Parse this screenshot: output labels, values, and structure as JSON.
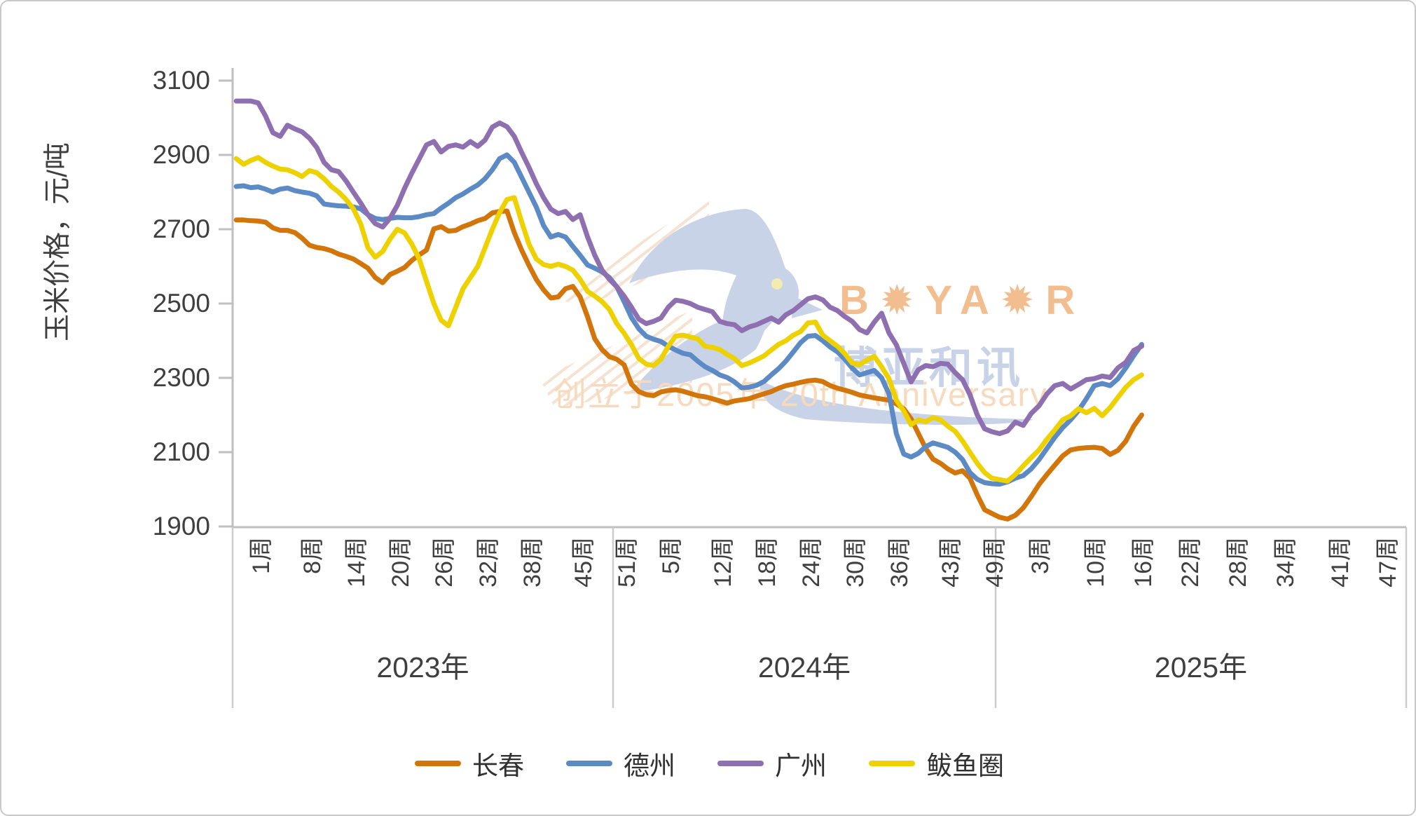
{
  "chart_data": {
    "type": "line",
    "title": "",
    "y_axis": {
      "title": "玉米价格，元/吨",
      "ticks": [
        3100,
        2900,
        2700,
        2500,
        2300,
        2100,
        1900
      ],
      "min": 1900,
      "max": 3100
    },
    "x_axis": {
      "groups": [
        {
          "year_label": "2023年",
          "weeks_total": 52,
          "week_tick_numbers": [
            1,
            8,
            14,
            20,
            26,
            32,
            38,
            45,
            51
          ],
          "week_tick_labels": [
            "1周",
            "8周",
            "14周",
            "20周",
            "26周",
            "32周",
            "38周",
            "45周",
            "51周"
          ]
        },
        {
          "year_label": "2024年",
          "weeks_total": 52,
          "week_tick_numbers": [
            5,
            12,
            18,
            24,
            30,
            36,
            43,
            49
          ],
          "week_tick_labels": [
            "5周",
            "12周",
            "18周",
            "24周",
            "30周",
            "36周",
            "43周",
            "49周"
          ]
        },
        {
          "year_label": "2025年",
          "weeks_total": 52,
          "week_tick_numbers": [
            3,
            10,
            16,
            22,
            28,
            34,
            41,
            47
          ],
          "week_tick_labels": [
            "3周",
            "10周",
            "16周",
            "22周",
            "28周",
            "34周",
            "41周",
            "47周"
          ]
        }
      ]
    },
    "legend_position": "bottom",
    "grid": "off",
    "series": [
      {
        "name": "长春",
        "color": "#d2760c",
        "values_2023": [
          2725,
          2725,
          2723,
          2722,
          2719,
          2704,
          2697,
          2697,
          2691,
          2676,
          2657,
          2651,
          2648,
          2642,
          2633,
          2627,
          2620,
          2608,
          2595,
          2570,
          2556,
          2578,
          2587,
          2597,
          2616,
          2631,
          2644,
          2701,
          2707,
          2695,
          2697,
          2707,
          2714,
          2723,
          2729,
          2744,
          2748,
          2749,
          2691,
          2644,
          2603,
          2565,
          2537,
          2515,
          2518,
          2540,
          2546,
          2518,
          2465,
          2405,
          2376,
          2357
        ],
        "values_2024": [
          2350,
          2335,
          2283,
          2263,
          2255,
          2252,
          2262,
          2266,
          2268,
          2264,
          2258,
          2252,
          2249,
          2244,
          2238,
          2232,
          2238,
          2241,
          2244,
          2251,
          2257,
          2263,
          2272,
          2279,
          2283,
          2288,
          2292,
          2294,
          2290,
          2279,
          2272,
          2267,
          2261,
          2254,
          2250,
          2246,
          2243,
          2240,
          2230,
          2217,
          2190,
          2150,
          2110,
          2081,
          2070,
          2055,
          2044,
          2050,
          2030,
          1985,
          1945,
          1935
        ],
        "values_2025": [
          1925,
          1920,
          1930,
          1950,
          1980,
          2013,
          2040,
          2065,
          2090,
          2106,
          2110,
          2112,
          2113,
          2110,
          2094,
          2105,
          2130,
          2170,
          2200
        ]
      },
      {
        "name": "德州",
        "color": "#5b8ac4",
        "values_2023": [
          2815,
          2817,
          2812,
          2814,
          2808,
          2800,
          2808,
          2811,
          2804,
          2800,
          2797,
          2790,
          2768,
          2765,
          2763,
          2762,
          2760,
          2755,
          2739,
          2729,
          2726,
          2729,
          2732,
          2731,
          2731,
          2734,
          2739,
          2742,
          2757,
          2770,
          2785,
          2795,
          2808,
          2819,
          2836,
          2860,
          2890,
          2900,
          2880,
          2840,
          2800,
          2760,
          2710,
          2679,
          2686,
          2679,
          2654,
          2630,
          2604,
          2595,
          2585,
          2570
        ],
        "values_2024": [
          2545,
          2505,
          2462,
          2432,
          2412,
          2404,
          2398,
          2385,
          2375,
          2366,
          2362,
          2345,
          2330,
          2320,
          2308,
          2301,
          2289,
          2273,
          2275,
          2280,
          2290,
          2308,
          2325,
          2345,
          2370,
          2395,
          2412,
          2414,
          2400,
          2383,
          2370,
          2350,
          2326,
          2308,
          2314,
          2320,
          2300,
          2257,
          2150,
          2095,
          2087,
          2097,
          2115,
          2125,
          2119,
          2113,
          2100,
          2080,
          2045,
          2027,
          2018,
          2015
        ],
        "values_2025": [
          2014,
          2020,
          2030,
          2037,
          2055,
          2080,
          2110,
          2140,
          2166,
          2187,
          2212,
          2244,
          2279,
          2285,
          2279,
          2298,
          2327,
          2360,
          2390
        ]
      },
      {
        "name": "广州",
        "color": "#8e6fb0",
        "values_2023": [
          3045,
          3045,
          3045,
          3040,
          3005,
          2960,
          2950,
          2980,
          2970,
          2962,
          2945,
          2920,
          2880,
          2860,
          2855,
          2830,
          2800,
          2771,
          2739,
          2715,
          2706,
          2729,
          2764,
          2810,
          2851,
          2889,
          2927,
          2936,
          2908,
          2923,
          2927,
          2921,
          2936,
          2923,
          2940,
          2975,
          2986,
          2976,
          2950,
          2907,
          2867,
          2823,
          2785,
          2754,
          2742,
          2748,
          2726,
          2739,
          2680,
          2630,
          2590,
          2565
        ],
        "values_2024": [
          2545,
          2520,
          2490,
          2458,
          2446,
          2452,
          2461,
          2490,
          2509,
          2506,
          2500,
          2490,
          2484,
          2478,
          2452,
          2446,
          2443,
          2427,
          2437,
          2443,
          2452,
          2461,
          2450,
          2470,
          2481,
          2497,
          2513,
          2518,
          2510,
          2490,
          2481,
          2465,
          2452,
          2430,
          2421,
          2450,
          2474,
          2421,
          2389,
          2339,
          2289,
          2322,
          2333,
          2330,
          2339,
          2337,
          2314,
          2295,
          2255,
          2200,
          2163,
          2155
        ],
        "values_2025": [
          2150,
          2157,
          2181,
          2172,
          2204,
          2225,
          2257,
          2279,
          2285,
          2270,
          2282,
          2295,
          2298,
          2305,
          2301,
          2327,
          2342,
          2374,
          2385
        ]
      },
      {
        "name": "鲅鱼圈",
        "color": "#edd100",
        "values_2023": [
          2890,
          2875,
          2885,
          2893,
          2880,
          2870,
          2862,
          2860,
          2852,
          2842,
          2858,
          2852,
          2836,
          2815,
          2800,
          2780,
          2755,
          2715,
          2650,
          2625,
          2640,
          2673,
          2700,
          2690,
          2660,
          2620,
          2560,
          2500,
          2455,
          2440,
          2490,
          2540,
          2570,
          2600,
          2650,
          2700,
          2745,
          2780,
          2785,
          2720,
          2660,
          2620,
          2605,
          2600,
          2606,
          2600,
          2590,
          2565,
          2533,
          2520,
          2505,
          2484
        ],
        "values_2024": [
          2446,
          2420,
          2389,
          2352,
          2337,
          2333,
          2350,
          2385,
          2412,
          2415,
          2410,
          2405,
          2385,
          2382,
          2376,
          2363,
          2352,
          2333,
          2340,
          2349,
          2359,
          2375,
          2390,
          2400,
          2415,
          2425,
          2448,
          2450,
          2415,
          2400,
          2385,
          2365,
          2340,
          2335,
          2348,
          2358,
          2330,
          2298,
          2240,
          2211,
          2174,
          2187,
          2182,
          2193,
          2187,
          2170,
          2156,
          2130,
          2100,
          2070,
          2045,
          2030
        ],
        "values_2025": [
          2026,
          2022,
          2040,
          2063,
          2085,
          2106,
          2135,
          2160,
          2187,
          2198,
          2217,
          2206,
          2218,
          2198,
          2220,
          2248,
          2275,
          2295,
          2308
        ]
      }
    ],
    "legend": [
      {
        "label": "长春",
        "color": "#d2760c"
      },
      {
        "label": "德州",
        "color": "#5b8ac4"
      },
      {
        "label": "广州",
        "color": "#8e6fb0"
      },
      {
        "label": "鲅鱼圈",
        "color": "#edd100"
      }
    ]
  },
  "watermark": {
    "brand_latin": "B✹YA✹R",
    "brand_cjk": "博亚和讯",
    "slogan": "创立于2005年 20th Anniversary"
  },
  "colors": {
    "axis_line": "#bfbfbf",
    "separator": "#cccccc",
    "tick_text": "#3f3f3f",
    "watermark_bird": "#c9d3e7",
    "watermark_orange": "#f2bd8f"
  }
}
